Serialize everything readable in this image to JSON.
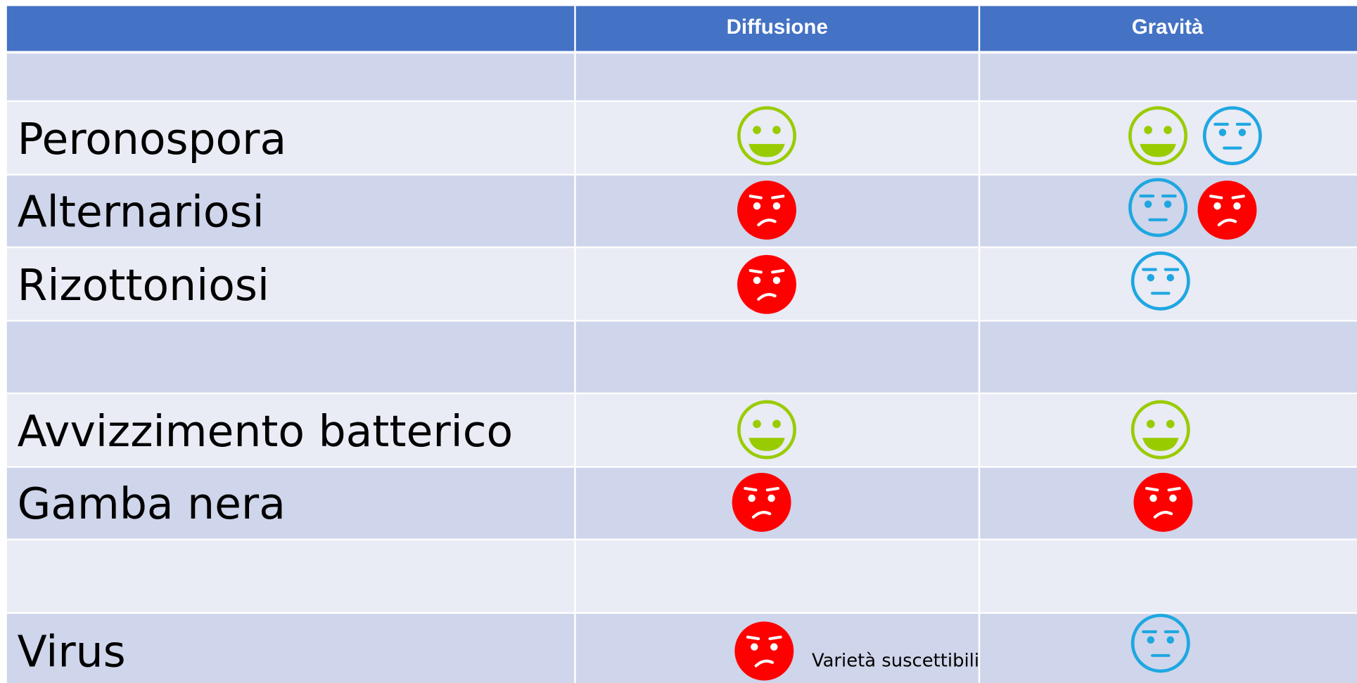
{
  "header": {
    "columns": [
      "Diffusione",
      "Gravità"
    ]
  },
  "rows": [
    "Peronospora",
    "Alternariosi",
    "Rizottoniosi",
    "Avvizzimento batterico",
    "Gamba nera",
    "Virus"
  ],
  "note": "Varietà suscettibili"
}
